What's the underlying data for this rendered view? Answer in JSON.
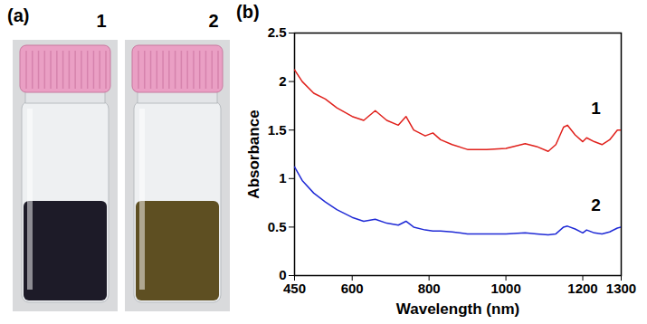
{
  "panel_a": {
    "label": "(a)",
    "vials": [
      {
        "label": "1",
        "color": "#1d1b28"
      },
      {
        "label": "2",
        "color": "#5e4f22"
      }
    ]
  },
  "chart_data": {
    "type": "line",
    "panel_label": "(b)",
    "x_label": "Wavelength (nm)",
    "y_label": "Absorbance",
    "x": [
      450,
      470,
      500,
      530,
      560,
      600,
      630,
      660,
      690,
      720,
      740,
      760,
      790,
      810,
      830,
      860,
      900,
      950,
      1000,
      1050,
      1080,
      1110,
      1130,
      1150,
      1160,
      1180,
      1200,
      1210,
      1230,
      1250,
      1270,
      1290,
      1300
    ],
    "series": [
      {
        "name": "1",
        "color": "#e0201b",
        "values": [
          2.12,
          2.0,
          1.88,
          1.82,
          1.73,
          1.64,
          1.6,
          1.7,
          1.6,
          1.55,
          1.64,
          1.5,
          1.44,
          1.47,
          1.4,
          1.35,
          1.3,
          1.3,
          1.31,
          1.36,
          1.33,
          1.28,
          1.35,
          1.53,
          1.55,
          1.45,
          1.38,
          1.42,
          1.38,
          1.35,
          1.4,
          1.5,
          1.5
        ]
      },
      {
        "name": "2",
        "color": "#1f2ad6",
        "values": [
          1.12,
          0.98,
          0.85,
          0.76,
          0.68,
          0.6,
          0.56,
          0.58,
          0.54,
          0.52,
          0.56,
          0.5,
          0.47,
          0.46,
          0.46,
          0.45,
          0.43,
          0.43,
          0.43,
          0.44,
          0.43,
          0.42,
          0.43,
          0.5,
          0.51,
          0.48,
          0.44,
          0.47,
          0.44,
          0.43,
          0.45,
          0.49,
          0.5
        ]
      }
    ],
    "xlim": [
      450,
      1300
    ],
    "xticks": [
      450,
      600,
      800,
      1000,
      1200,
      1300
    ],
    "ylim": [
      0,
      2.5
    ],
    "yticks": [
      0,
      0.5,
      1,
      1.5,
      2,
      2.5
    ]
  }
}
